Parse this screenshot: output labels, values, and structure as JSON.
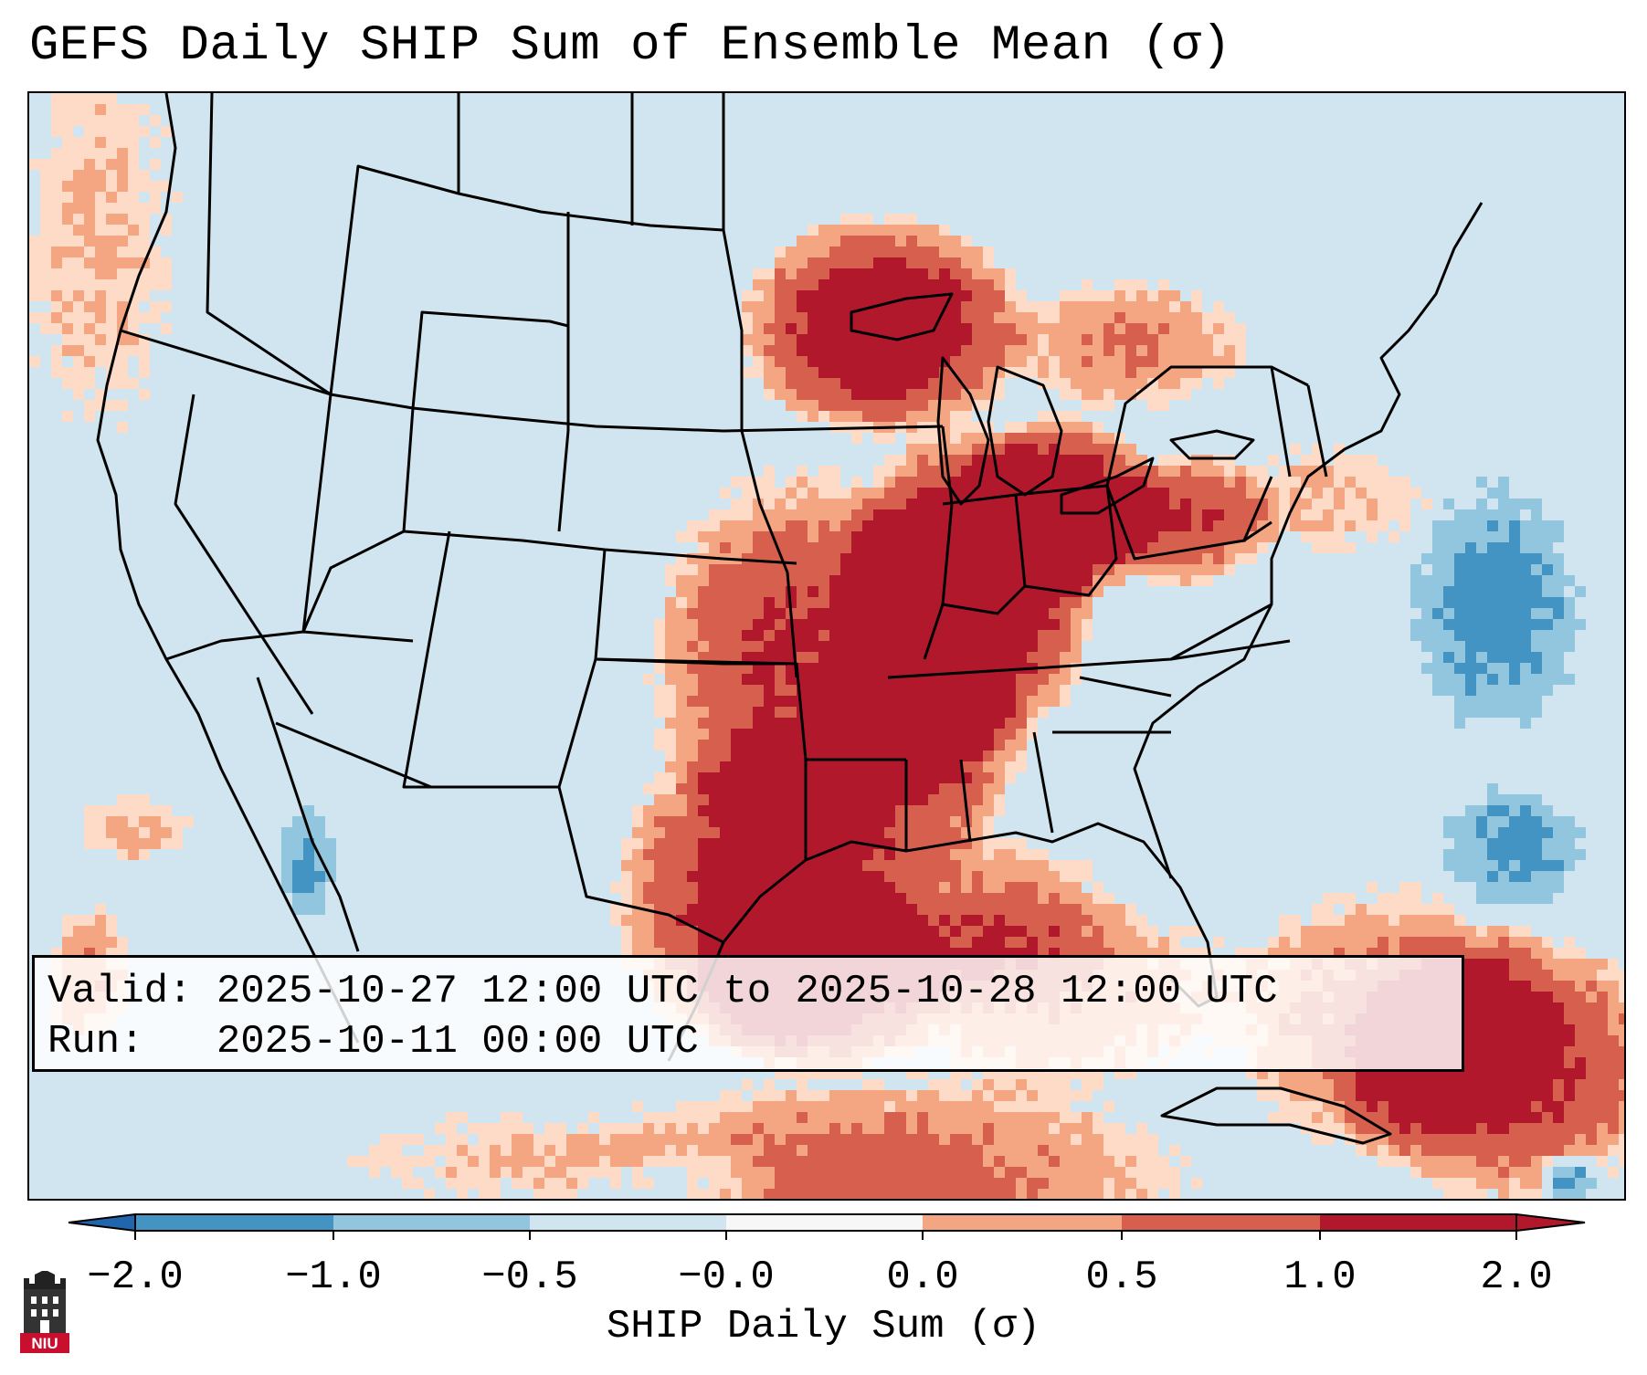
{
  "title": "GEFS Daily SHIP Sum of Ensemble Mean (σ)",
  "info": {
    "valid_line": "Valid: 2025-10-27 12:00 UTC to 2025-10-28 12:00 UTC",
    "run_line": "Run:   2025-10-11 00:00 UTC"
  },
  "colorbar": {
    "label": "SHIP Daily Sum (σ)",
    "ticks": [
      "−2.0",
      "−1.0",
      "−0.5",
      "−0.0",
      "0.0",
      "0.5",
      "1.0",
      "2.0"
    ],
    "colors": [
      "#4393c3",
      "#92c5de",
      "#d1e5f0",
      "#f7f7f7",
      "#fddbc7",
      "#f4a582",
      "#d6604d",
      "#b2182b"
    ],
    "extend": "both"
  },
  "map": {
    "background_color": "#d1e5f0",
    "outline_color": "#000000"
  },
  "logo": {
    "text": "NIU",
    "color": "#c8102e"
  }
}
